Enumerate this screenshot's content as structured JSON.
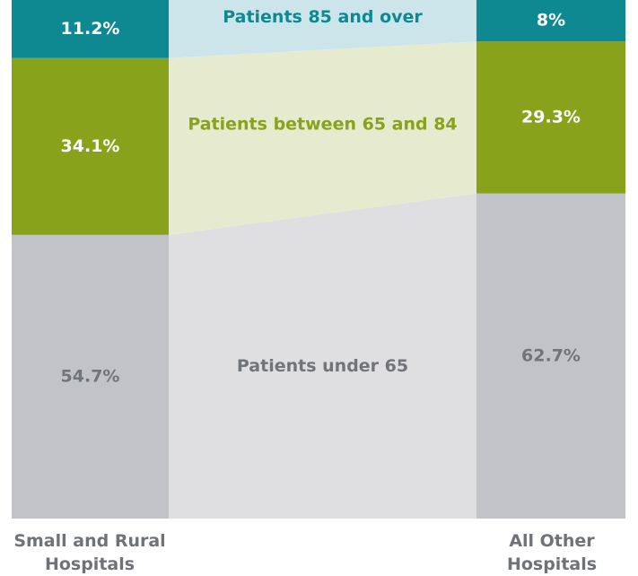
{
  "chart_data": {
    "type": "bar",
    "stacked": true,
    "categories": [
      "Small and Rural Hospitals",
      "All Other Hospitals"
    ],
    "ylim": [
      0,
      100
    ],
    "series": [
      {
        "name": "Patients under 65",
        "color": "#c1c3c8",
        "band_color": "#dfdfe2",
        "label_color": "#717479",
        "value_label_color": "#717479",
        "values": [
          54.7,
          62.7
        ],
        "value_labels": [
          "54.7%",
          "62.7%"
        ]
      },
      {
        "name": "Patients between 65 and 84",
        "color": "#88a21b",
        "band_color": "#e6ebd0",
        "label_color": "#88a21b",
        "value_label_color": "#ffffff",
        "values": [
          34.1,
          29.3
        ],
        "value_labels": [
          "34.1%",
          "29.3%"
        ]
      },
      {
        "name": "Patients 85 and over",
        "color": "#0e8891",
        "band_color": "#cce5ea",
        "label_color": "#0e8891",
        "value_label_color": "#ffffff",
        "values": [
          11.2,
          8
        ],
        "value_labels": [
          "11.2%",
          "8%"
        ]
      }
    ]
  }
}
